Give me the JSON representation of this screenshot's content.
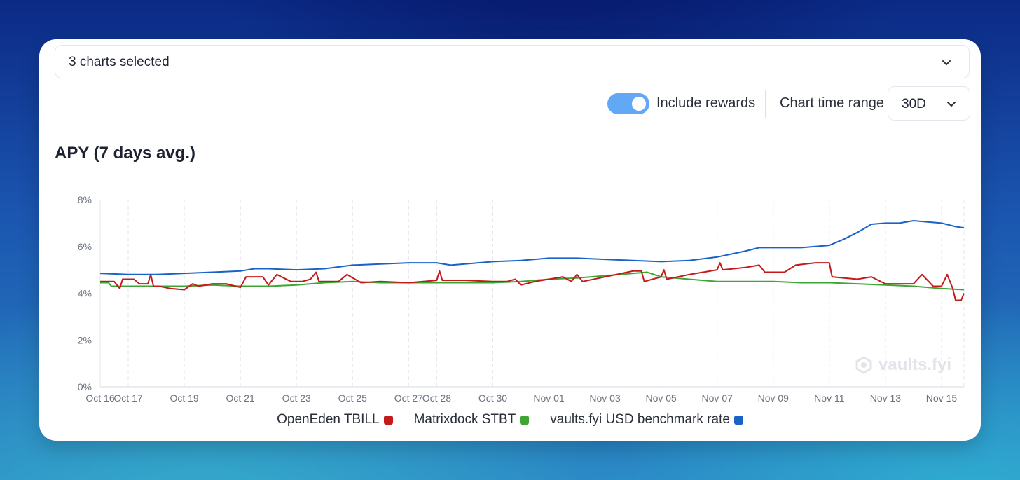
{
  "selector": {
    "label": "3 charts selected"
  },
  "controls": {
    "include_rewards_label": "Include rewards",
    "include_rewards_on": true,
    "time_range_label": "Chart time range",
    "time_range_value": "30D"
  },
  "watermark": "vaults.fyi",
  "colors": {
    "tbill": "#c41a1a",
    "stbt": "#3fa535",
    "benchmark": "#1a63c6",
    "toggle": "#63a8f5"
  },
  "chart_data": {
    "type": "line",
    "title": "APY (7 days avg.)",
    "y_ticks": [
      "0%",
      "2%",
      "4%",
      "6%",
      "8%"
    ],
    "ylim": [
      0,
      8
    ],
    "x_ticks": [
      "Oct 16",
      "Oct 17",
      "Oct 19",
      "Oct 21",
      "Oct 23",
      "Oct 25",
      "Oct 27",
      "Oct 28",
      "Oct 30",
      "Nov 01",
      "Nov 03",
      "Nov 05",
      "Nov 07",
      "Nov 09",
      "Nov 11",
      "Nov 13",
      "Nov 15"
    ],
    "x_days": [
      0,
      1,
      3,
      5,
      7,
      9,
      11,
      12,
      14,
      16,
      18,
      20,
      22,
      24,
      26,
      28,
      30
    ],
    "xlim": [
      0,
      30.8
    ],
    "grid": "vertical dashed",
    "legend_position": "bottom",
    "series": [
      {
        "name": "OpenEden TBILL",
        "color": "#c41a1a",
        "points": [
          [
            0,
            4.5
          ],
          [
            0.5,
            4.5
          ],
          [
            0.7,
            4.2
          ],
          [
            0.8,
            4.6
          ],
          [
            1.2,
            4.6
          ],
          [
            1.4,
            4.4
          ],
          [
            1.7,
            4.4
          ],
          [
            1.8,
            4.8
          ],
          [
            1.9,
            4.3
          ],
          [
            2.1,
            4.3
          ],
          [
            2.5,
            4.2
          ],
          [
            3,
            4.15
          ],
          [
            3.3,
            4.4
          ],
          [
            3.5,
            4.3
          ],
          [
            4,
            4.4
          ],
          [
            4.5,
            4.4
          ],
          [
            5,
            4.25
          ],
          [
            5.2,
            4.7
          ],
          [
            5.8,
            4.7
          ],
          [
            6,
            4.35
          ],
          [
            6.3,
            4.8
          ],
          [
            6.8,
            4.5
          ],
          [
            7.2,
            4.5
          ],
          [
            7.5,
            4.6
          ],
          [
            7.7,
            4.9
          ],
          [
            7.8,
            4.5
          ],
          [
            8.5,
            4.5
          ],
          [
            8.8,
            4.8
          ],
          [
            9.3,
            4.45
          ],
          [
            10,
            4.5
          ],
          [
            11,
            4.45
          ],
          [
            12,
            4.55
          ],
          [
            12.1,
            4.95
          ],
          [
            12.2,
            4.55
          ],
          [
            13,
            4.55
          ],
          [
            14,
            4.5
          ],
          [
            14.5,
            4.5
          ],
          [
            14.8,
            4.6
          ],
          [
            15,
            4.35
          ],
          [
            15.5,
            4.5
          ],
          [
            16,
            4.6
          ],
          [
            16.5,
            4.7
          ],
          [
            16.8,
            4.5
          ],
          [
            17,
            4.8
          ],
          [
            17.2,
            4.5
          ],
          [
            18,
            4.7
          ],
          [
            19,
            4.95
          ],
          [
            19.3,
            4.95
          ],
          [
            19.4,
            4.5
          ],
          [
            20,
            4.7
          ],
          [
            20.1,
            5.0
          ],
          [
            20.2,
            4.6
          ],
          [
            21,
            4.8
          ],
          [
            21.5,
            4.9
          ],
          [
            22,
            5.0
          ],
          [
            22.1,
            5.3
          ],
          [
            22.2,
            5.0
          ],
          [
            23,
            5.1
          ],
          [
            23.5,
            5.2
          ],
          [
            23.7,
            4.9
          ],
          [
            24.4,
            4.9
          ],
          [
            24.8,
            5.2
          ],
          [
            25.5,
            5.3
          ],
          [
            26,
            5.3
          ],
          [
            26.1,
            4.7
          ],
          [
            27,
            4.6
          ],
          [
            27.5,
            4.7
          ],
          [
            28,
            4.4
          ],
          [
            29,
            4.4
          ],
          [
            29.3,
            4.8
          ],
          [
            29.7,
            4.3
          ],
          [
            30,
            4.3
          ],
          [
            30.2,
            4.8
          ],
          [
            30.4,
            4.2
          ],
          [
            30.5,
            3.7
          ],
          [
            30.7,
            3.7
          ],
          [
            30.8,
            4.0
          ]
        ]
      },
      {
        "name": "Matrixdock STBT",
        "color": "#3fa535",
        "points": [
          [
            0,
            4.45
          ],
          [
            0.3,
            4.45
          ],
          [
            0.4,
            4.3
          ],
          [
            1,
            4.3
          ],
          [
            2,
            4.3
          ],
          [
            3,
            4.3
          ],
          [
            4,
            4.35
          ],
          [
            5,
            4.3
          ],
          [
            6,
            4.3
          ],
          [
            7,
            4.35
          ],
          [
            8,
            4.45
          ],
          [
            9,
            4.5
          ],
          [
            10,
            4.45
          ],
          [
            11,
            4.45
          ],
          [
            12,
            4.45
          ],
          [
            13,
            4.45
          ],
          [
            14,
            4.45
          ],
          [
            15,
            4.5
          ],
          [
            16,
            4.6
          ],
          [
            17,
            4.65
          ],
          [
            18,
            4.75
          ],
          [
            19,
            4.85
          ],
          [
            19.5,
            4.9
          ],
          [
            20,
            4.7
          ],
          [
            21,
            4.6
          ],
          [
            22,
            4.5
          ],
          [
            23,
            4.5
          ],
          [
            24,
            4.5
          ],
          [
            25,
            4.45
          ],
          [
            26,
            4.45
          ],
          [
            27,
            4.4
          ],
          [
            28,
            4.35
          ],
          [
            29,
            4.3
          ],
          [
            30,
            4.2
          ],
          [
            30.8,
            4.15
          ]
        ]
      },
      {
        "name": "vaults.fyi USD benchmark rate",
        "color": "#1a63c6",
        "points": [
          [
            0,
            4.85
          ],
          [
            1,
            4.8
          ],
          [
            2,
            4.8
          ],
          [
            3,
            4.85
          ],
          [
            4,
            4.9
          ],
          [
            5,
            4.95
          ],
          [
            5.5,
            5.05
          ],
          [
            6,
            5.05
          ],
          [
            7,
            5.0
          ],
          [
            8,
            5.05
          ],
          [
            9,
            5.2
          ],
          [
            10,
            5.25
          ],
          [
            11,
            5.3
          ],
          [
            12,
            5.3
          ],
          [
            12.5,
            5.2
          ],
          [
            13,
            5.25
          ],
          [
            14,
            5.35
          ],
          [
            15,
            5.4
          ],
          [
            16,
            5.5
          ],
          [
            17,
            5.5
          ],
          [
            18,
            5.45
          ],
          [
            19,
            5.4
          ],
          [
            20,
            5.35
          ],
          [
            21,
            5.4
          ],
          [
            22,
            5.55
          ],
          [
            23,
            5.8
          ],
          [
            23.5,
            5.95
          ],
          [
            24,
            5.95
          ],
          [
            25,
            5.95
          ],
          [
            26,
            6.05
          ],
          [
            26.5,
            6.3
          ],
          [
            27,
            6.6
          ],
          [
            27.5,
            6.95
          ],
          [
            28,
            7.0
          ],
          [
            28.5,
            7.0
          ],
          [
            29,
            7.1
          ],
          [
            29.5,
            7.05
          ],
          [
            30,
            7.0
          ],
          [
            30.5,
            6.85
          ],
          [
            30.8,
            6.8
          ]
        ]
      }
    ]
  }
}
